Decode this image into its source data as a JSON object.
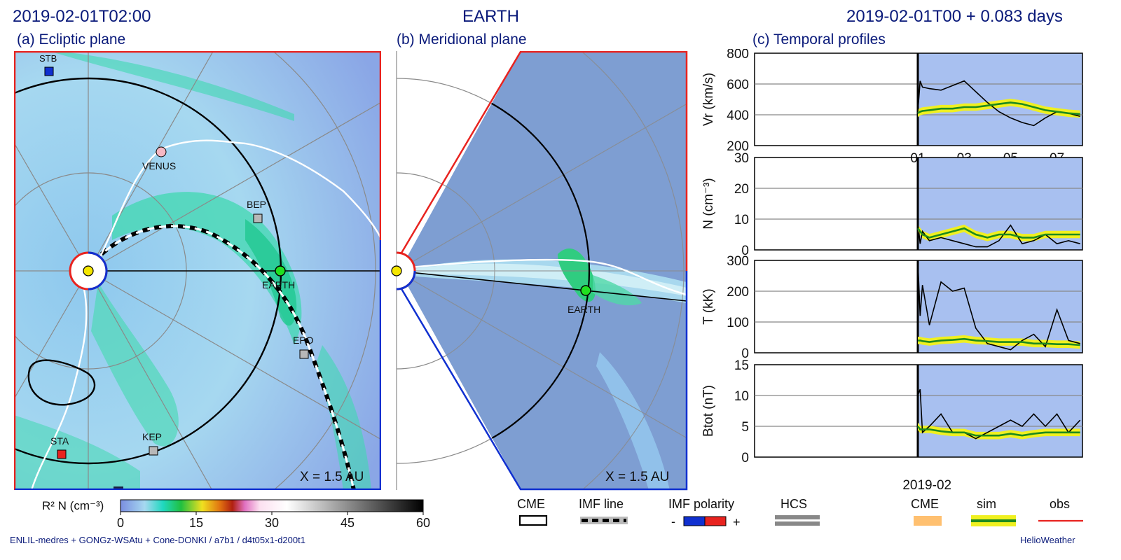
{
  "header": {
    "datetime": "2019-02-01T02:00",
    "target": "EARTH",
    "run_time": "2019-02-01T00 +  0.083 days"
  },
  "panels": {
    "a_title": "(a) Ecliptic plane",
    "b_title": "(b) Meridional plane",
    "c_title": "(c) Temporal profiles",
    "scale_label": "X = 1.5 AU"
  },
  "bodies": {
    "stb": "STB",
    "venus": "VENUS",
    "bep": "BEP",
    "earth": "EARTH",
    "epo": "EPO",
    "sta": "STA",
    "kep": "KEP"
  },
  "legend": {
    "colorbar_label": "R² N (cm⁻³)",
    "colorbar_ticks": [
      "0",
      "15",
      "30",
      "45",
      "60"
    ],
    "cme": "CME",
    "imf_line": "IMF line",
    "imf_polarity": "IMF polarity",
    "minus": "-",
    "plus": "+",
    "hcs": "HCS",
    "cme2": "CME",
    "sim": "sim",
    "obs": "obs"
  },
  "footer": {
    "model": "ENLIL-medres + GONGz-WSAtu + Cone-DONKI / a7b1 / d4t05x1-d200t1",
    "brand": "HelioWeather"
  },
  "colors": {
    "title": "#0a1a7a",
    "red_border": "#e8231f",
    "blue_border": "#1030d0",
    "sim_green": "#1e8a1e",
    "sim_band": "#f0f020",
    "cme_orange": "#ffc070",
    "panel_blue": "#a8c0f0",
    "obs": "#000000"
  },
  "chart_data": [
    {
      "type": "line",
      "ylabel": "Vr (km/s)",
      "ylim": [
        200,
        800
      ],
      "yticks": [
        200,
        400,
        600,
        800
      ],
      "xticks": [
        "01",
        "03",
        "05",
        "07"
      ],
      "xlabel2": "2019-02",
      "x": [
        1.0,
        1.1,
        1.2,
        1.5,
        2.0,
        2.5,
        3.0,
        3.5,
        4.0,
        4.5,
        5.0,
        5.5,
        6.0,
        6.5,
        7.0,
        7.5,
        8.0
      ],
      "series": [
        {
          "name": "obs",
          "values": [
            420,
            620,
            580,
            570,
            560,
            590,
            620,
            550,
            480,
            420,
            380,
            350,
            330,
            380,
            420,
            410,
            390
          ]
        },
        {
          "name": "sim",
          "values": [
            410,
            420,
            425,
            430,
            440,
            440,
            450,
            450,
            460,
            470,
            480,
            470,
            450,
            430,
            420,
            410,
            405
          ]
        }
      ]
    },
    {
      "type": "line",
      "ylabel": "N (cm⁻³)",
      "ylim": [
        0,
        30
      ],
      "yticks": [
        0,
        10,
        20,
        30
      ],
      "x": [
        1.0,
        1.1,
        1.2,
        1.5,
        2.0,
        2.5,
        3.0,
        3.5,
        4.0,
        4.5,
        5.0,
        5.5,
        6.0,
        6.5,
        7.0,
        7.5,
        8.0
      ],
      "series": [
        {
          "name": "obs",
          "values": [
            9,
            2,
            6,
            3,
            4,
            3,
            2,
            1,
            1,
            3,
            8,
            2,
            3,
            5,
            2,
            3,
            2
          ]
        },
        {
          "name": "sim",
          "values": [
            7,
            6,
            5,
            4,
            5,
            6,
            7,
            5,
            4,
            5,
            5,
            4,
            4,
            5,
            5,
            5,
            5
          ]
        }
      ]
    },
    {
      "type": "line",
      "ylabel": "T (kK)",
      "ylim": [
        0,
        300
      ],
      "yticks": [
        0,
        100,
        200,
        300
      ],
      "x": [
        1.0,
        1.1,
        1.2,
        1.5,
        2.0,
        2.5,
        3.0,
        3.5,
        4.0,
        4.5,
        5.0,
        5.5,
        6.0,
        6.5,
        7.0,
        7.5,
        8.0
      ],
      "series": [
        {
          "name": "obs",
          "values": [
            300,
            120,
            220,
            90,
            230,
            200,
            210,
            80,
            30,
            20,
            10,
            40,
            60,
            20,
            140,
            40,
            30
          ]
        },
        {
          "name": "sim",
          "values": [
            40,
            40,
            38,
            35,
            40,
            42,
            45,
            40,
            38,
            35,
            35,
            35,
            30,
            30,
            28,
            28,
            25
          ]
        }
      ]
    },
    {
      "type": "line",
      "ylabel": "Btot (nT)",
      "ylim": [
        0,
        15
      ],
      "yticks": [
        0,
        5,
        10,
        15
      ],
      "x": [
        1.0,
        1.1,
        1.2,
        1.5,
        2.0,
        2.5,
        3.0,
        3.5,
        4.0,
        4.5,
        5.0,
        5.5,
        6.0,
        6.5,
        7.0,
        7.5,
        8.0
      ],
      "series": [
        {
          "name": "obs",
          "values": [
            10,
            11,
            4,
            5,
            7,
            4,
            4,
            3,
            4,
            5,
            6,
            5,
            7,
            5,
            7,
            4,
            6
          ]
        },
        {
          "name": "sim",
          "values": [
            5,
            4.5,
            4.5,
            4.5,
            4.2,
            4,
            4,
            3.5,
            3.5,
            3.5,
            3.8,
            3.5,
            3.8,
            4,
            4,
            4,
            4
          ]
        }
      ]
    }
  ]
}
